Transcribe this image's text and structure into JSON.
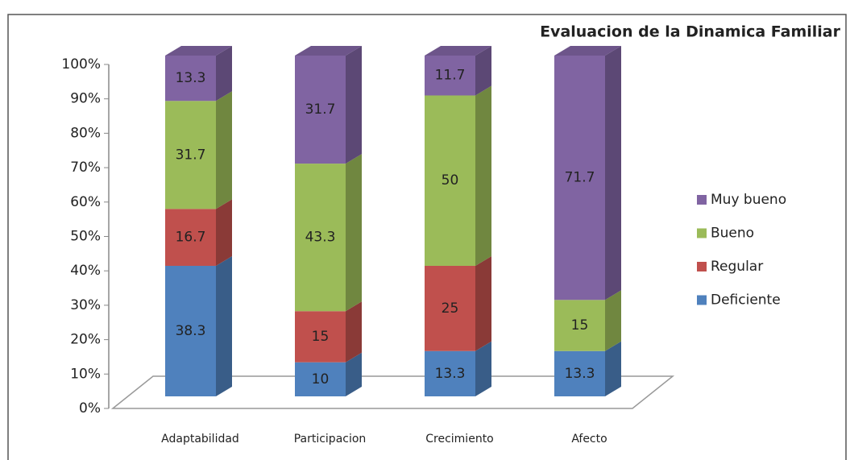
{
  "chart_data": {
    "type": "bar3d_stacked",
    "title": "Evaluacion de la Dinamica Familiar",
    "categories": [
      "Adaptabilidad",
      "Participacion",
      "Crecimiento",
      "Afecto"
    ],
    "series": [
      {
        "name": "Deficiente",
        "color": "#4f81bd",
        "values": [
          38.3,
          10,
          13.3,
          13.3
        ]
      },
      {
        "name": "Regular",
        "color": "#c0504d",
        "values": [
          16.7,
          15,
          25,
          null
        ]
      },
      {
        "name": "Bueno",
        "color": "#9bbb59",
        "values": [
          31.7,
          43.3,
          50,
          15
        ]
      },
      {
        "name": "Muy bueno",
        "color": "#8064a2",
        "values": [
          13.3,
          31.7,
          11.7,
          71.7
        ]
      }
    ],
    "ylim": [
      0,
      100
    ],
    "yticks": [
      {
        "value": 0,
        "label": "0%"
      },
      {
        "value": 10,
        "label": "10%"
      },
      {
        "value": 20,
        "label": "20%"
      },
      {
        "value": 30,
        "label": "30%"
      },
      {
        "value": 40,
        "label": "40%"
      },
      {
        "value": 50,
        "label": "50%"
      },
      {
        "value": 60,
        "label": "60%"
      },
      {
        "value": 70,
        "label": "70%"
      },
      {
        "value": 80,
        "label": "80%"
      },
      {
        "value": 90,
        "label": "90%"
      },
      {
        "value": 100,
        "label": "100%"
      }
    ],
    "legend": "right"
  }
}
